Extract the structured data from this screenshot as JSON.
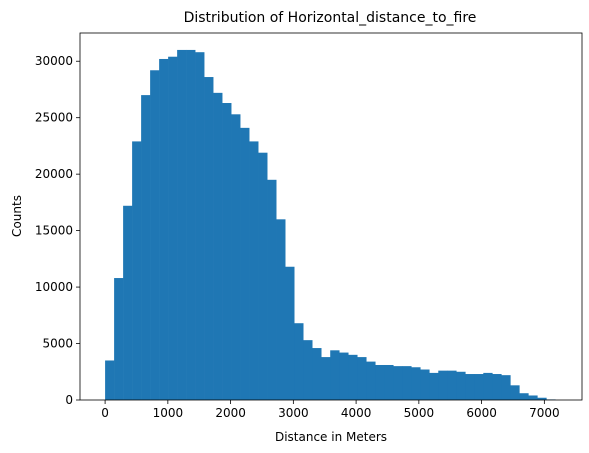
{
  "chart_data": {
    "type": "bar",
    "title": "Distribution of Horizontal_distance_to_fire",
    "xlabel": "Distance in Meters",
    "ylabel": "Counts",
    "xlim": [
      -400,
      7600
    ],
    "ylim": [
      0,
      32500
    ],
    "bin_width": 143.5,
    "bin_starts": [
      0,
      143.5,
      287,
      430.5,
      574,
      717.5,
      861,
      1004.5,
      1148,
      1291.5,
      1435,
      1578.5,
      1722,
      1865.5,
      2009,
      2152.5,
      2296,
      2439.5,
      2583,
      2726.5,
      2870,
      3013.5,
      3157,
      3300.5,
      3444,
      3587.5,
      3731,
      3874.5,
      4018,
      4161.5,
      4305,
      4448.5,
      4592,
      4735.5,
      4879,
      5022.5,
      5166,
      5309.5,
      5453,
      5596.5,
      5740,
      5883.5,
      6027,
      6170.5,
      6314,
      6457.5,
      6601,
      6744.5,
      6888,
      7031.5
    ],
    "values": [
      3500,
      10800,
      17200,
      22900,
      27000,
      29200,
      30200,
      30400,
      31000,
      31000,
      30800,
      28600,
      27200,
      26300,
      25300,
      24100,
      22900,
      21900,
      19500,
      16000,
      11800,
      6800,
      5300,
      4600,
      3800,
      4400,
      4200,
      4000,
      3800,
      3400,
      3100,
      3100,
      3000,
      3000,
      2900,
      2700,
      2400,
      2600,
      2600,
      2500,
      2300,
      2300,
      2400,
      2300,
      2200,
      1300,
      600,
      400,
      200,
      50
    ],
    "x_ticks": [
      0,
      1000,
      2000,
      3000,
      4000,
      5000,
      6000,
      7000
    ],
    "y_ticks": [
      0,
      5000,
      10000,
      15000,
      20000,
      25000,
      30000
    ],
    "bar_color": "#1f77b4",
    "grid": false,
    "legend": "none"
  }
}
